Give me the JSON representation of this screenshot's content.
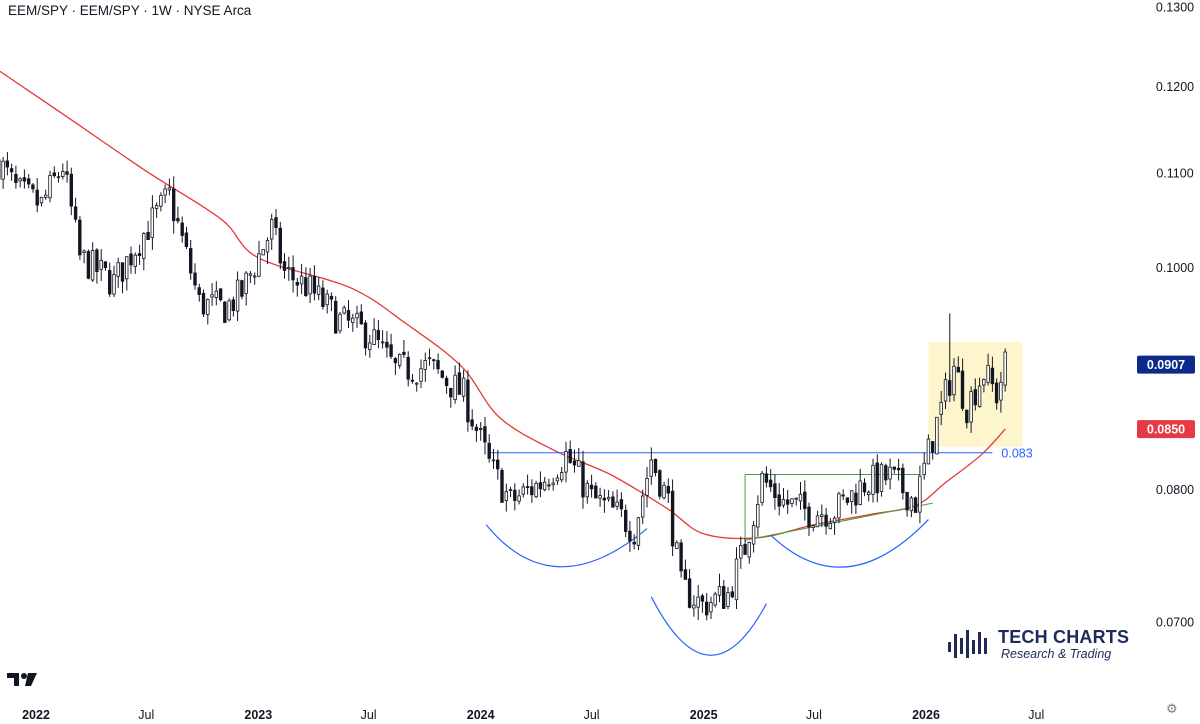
{
  "header": {
    "title": "EEM/SPY · EEM/SPY · 1W · NYSE Arca"
  },
  "brand": {
    "name": "TECH CHARTS",
    "tagline": "Research & Trading"
  },
  "icons": {
    "tradingview": "tradingview-logo-icon",
    "settings": "settings-gear-icon"
  },
  "colors": {
    "up": "#ffffff",
    "down": "#131722",
    "ma": "#e53935",
    "level": "#2962ff",
    "trendline": "#43a047",
    "highlight": "#fdf6cc",
    "last_price_tag": "#0d2a8a",
    "ma_tag": "#e53945"
  },
  "chart_data": {
    "type": "candlestick",
    "symbol": "EEM/SPY",
    "interval": "1W",
    "exchange": "NYSE Arca",
    "y_axis": {
      "ticks": [
        "0.1300",
        "0.1200",
        "0.1100",
        "0.1000",
        "0.0850",
        "0.0800",
        "0.0700"
      ],
      "ylim": [
        0.0665,
        0.1305
      ],
      "scale": "log"
    },
    "x_axis": {
      "ticks": [
        {
          "label": "2022",
          "date": "2022-01-01",
          "bold": true
        },
        {
          "label": "Jul",
          "date": "2022-07-01",
          "bold": false
        },
        {
          "label": "2023",
          "date": "2023-01-01",
          "bold": true
        },
        {
          "label": "Jul",
          "date": "2023-07-01",
          "bold": false
        },
        {
          "label": "2024",
          "date": "2024-01-01",
          "bold": true
        },
        {
          "label": "Jul",
          "date": "2024-07-01",
          "bold": false
        },
        {
          "label": "2025",
          "date": "2025-01-01",
          "bold": true
        },
        {
          "label": "Jul",
          "date": "2025-07-01",
          "bold": false
        },
        {
          "label": "2026",
          "date": "2026-01-01",
          "bold": true
        },
        {
          "label": "Jul",
          "date": "2026-07-01",
          "bold": false
        }
      ],
      "range": [
        "2021-10-25",
        "2026-10-05"
      ]
    },
    "price_path_close": [
      [
        "2021-11-01",
        0.1112
      ],
      [
        "2021-12-01",
        0.108
      ],
      [
        "2022-01-10",
        0.1065
      ],
      [
        "2022-02-14",
        0.1108
      ],
      [
        "2022-03-14",
        0.101
      ],
      [
        "2022-05-09",
        0.0985
      ],
      [
        "2022-06-27",
        0.1035
      ],
      [
        "2022-08-08",
        0.1075
      ],
      [
        "2022-09-26",
        0.0965
      ],
      [
        "2022-11-07",
        0.096
      ],
      [
        "2022-12-05",
        0.0975
      ],
      [
        "2023-01-23",
        0.104
      ],
      [
        "2023-02-13",
        0.0995
      ],
      [
        "2023-03-20",
        0.0982
      ],
      [
        "2023-05-15",
        0.0948
      ],
      [
        "2023-07-03",
        0.0935
      ],
      [
        "2023-08-14",
        0.0902
      ],
      [
        "2023-10-09",
        0.0905
      ],
      [
        "2023-12-04",
        0.088
      ],
      [
        "2024-01-15",
        0.082
      ],
      [
        "2024-02-19",
        0.079
      ],
      [
        "2024-04-08",
        0.0805
      ],
      [
        "2024-05-20",
        0.0828
      ],
      [
        "2024-07-01",
        0.0793
      ],
      [
        "2024-08-19",
        0.0778
      ],
      [
        "2024-09-09",
        0.0768
      ],
      [
        "2024-10-07",
        0.0825
      ],
      [
        "2024-11-04",
        0.079
      ],
      [
        "2024-11-25",
        0.0725
      ],
      [
        "2024-12-30",
        0.0712
      ],
      [
        "2025-02-10",
        0.072
      ],
      [
        "2025-03-10",
        0.0755
      ],
      [
        "2025-04-07",
        0.0808
      ],
      [
        "2025-05-12",
        0.079
      ],
      [
        "2025-06-23",
        0.0782
      ],
      [
        "2025-08-04",
        0.0783
      ],
      [
        "2025-09-22",
        0.0805
      ],
      [
        "2025-11-03",
        0.081
      ],
      [
        "2025-12-15",
        0.079
      ],
      [
        "2026-01-05",
        0.083
      ],
      [
        "2026-02-02",
        0.088
      ],
      [
        "2026-02-16",
        0.0905
      ],
      [
        "2026-03-09",
        0.087
      ],
      [
        "2026-04-06",
        0.09
      ],
      [
        "2026-04-27",
        0.088
      ],
      [
        "2026-05-11",
        0.0907
      ]
    ],
    "moving_average": [
      [
        "2021-10-25",
        0.1223
      ],
      [
        "2022-03-01",
        0.116
      ],
      [
        "2022-07-01",
        0.1102
      ],
      [
        "2022-11-01",
        0.105
      ],
      [
        "2023-01-01",
        0.101
      ],
      [
        "2023-06-01",
        0.098
      ],
      [
        "2023-09-01",
        0.0945
      ],
      [
        "2023-12-01",
        0.0905
      ],
      [
        "2024-02-01",
        0.086
      ],
      [
        "2024-05-01",
        0.0832
      ],
      [
        "2024-08-01",
        0.0812
      ],
      [
        "2024-11-01",
        0.0785
      ],
      [
        "2025-01-01",
        0.0765
      ],
      [
        "2025-04-01",
        0.0762
      ],
      [
        "2025-07-01",
        0.0772
      ],
      [
        "2025-10-01",
        0.078
      ],
      [
        "2025-12-15",
        0.0787
      ],
      [
        "2026-02-01",
        0.0805
      ],
      [
        "2026-04-01",
        0.0828
      ],
      [
        "2026-05-11",
        0.085
      ]
    ],
    "last_price": "0.0907",
    "ma_value": "0.0850",
    "horizontal_level": {
      "value": 0.083,
      "label": "0.083",
      "from": "2024-01-15",
      "to": "2026-04-20"
    },
    "highlight_box": {
      "from": "2026-01-05",
      "to": "2026-06-08",
      "low": 0.0835,
      "high": 0.0928
    },
    "neckline_lines": [
      {
        "from": [
          "2025-03-10",
          0.0812
        ],
        "to": [
          "2025-12-22",
          0.0812
        ]
      },
      {
        "from": [
          "2025-03-10",
          0.076
        ],
        "to": [
          "2026-01-12",
          0.0789
        ]
      }
    ],
    "pattern_arcs": [
      {
        "name": "left shoulder",
        "from": [
          "2024-01-10",
          0.0772
        ],
        "mid": [
          "2024-05-10",
          0.074
        ],
        "to": [
          "2024-09-30",
          0.0769
        ]
      },
      {
        "name": "head",
        "from": [
          "2024-10-07",
          0.0718
        ],
        "mid": [
          "2025-01-10",
          0.0677
        ],
        "to": [
          "2025-04-14",
          0.0713
        ]
      },
      {
        "name": "right shoulder",
        "from": [
          "2025-04-21",
          0.0764
        ],
        "mid": [
          "2025-08-25",
          0.074
        ],
        "to": [
          "2026-01-05",
          0.0776
        ]
      }
    ]
  }
}
